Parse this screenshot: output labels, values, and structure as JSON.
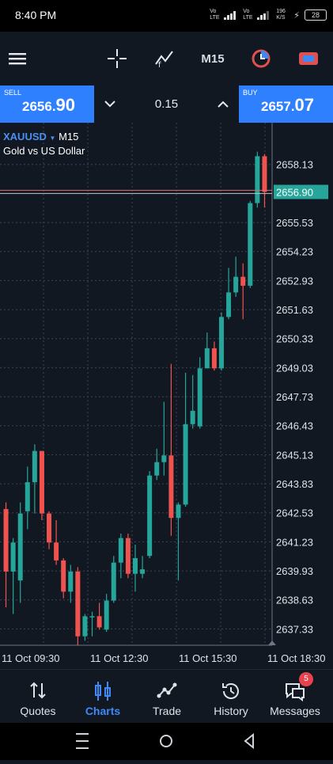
{
  "status": {
    "time": "8:40 PM",
    "net1": "Vo LTE",
    "net2": "4G",
    "net3": "Vo LTE",
    "net4": "4G",
    "speed": "196 K/S",
    "battery": "28"
  },
  "toolbar": {
    "timeframe": "M15",
    "icons": [
      "menu-icon",
      "crosshair-icon",
      "indicators-icon",
      "timeframe",
      "clock-icon",
      "trade-toggle-icon"
    ]
  },
  "trade": {
    "sell_label": "SELL",
    "sell_price_main": "2656.",
    "sell_price_big": "90",
    "buy_label": "BUY",
    "buy_price_main": "2657.",
    "buy_price_big": "07",
    "volume": "0.15"
  },
  "symbol": {
    "name": "XAUUSD",
    "tf": "M15",
    "desc": "Gold vs US Dollar"
  },
  "chart_data": {
    "type": "candlestick",
    "y_ticks": [
      "2658.13",
      "2655.53",
      "2654.23",
      "2652.93",
      "2651.63",
      "2650.33",
      "2649.03",
      "2647.73",
      "2646.43",
      "2645.13",
      "2643.83",
      "2642.53",
      "2641.23",
      "2639.93",
      "2638.63",
      "2637.33"
    ],
    "x_ticks": [
      "11 Oct 09:30",
      "11 Oct 12:30",
      "11 Oct 15:30",
      "11 Oct 18:30"
    ],
    "ylim": [
      2636.6,
      2660.0
    ],
    "price_line": 2656.9,
    "price_label": "2656.90",
    "candles": [
      {
        "o": 2642.7,
        "h": 2643.0,
        "l": 2638.3,
        "c": 2639.9
      },
      {
        "o": 2639.9,
        "h": 2641.4,
        "l": 2638.0,
        "c": 2641.2
      },
      {
        "o": 2639.5,
        "h": 2643.0,
        "l": 2638.5,
        "c": 2642.5
      },
      {
        "o": 2642.6,
        "h": 2644.6,
        "l": 2641.8,
        "c": 2643.9
      },
      {
        "o": 2643.9,
        "h": 2645.6,
        "l": 2642.5,
        "c": 2645.3
      },
      {
        "o": 2645.3,
        "h": 2645.3,
        "l": 2642.2,
        "c": 2642.5
      },
      {
        "o": 2642.5,
        "h": 2642.6,
        "l": 2640.9,
        "c": 2641.2
      },
      {
        "o": 2641.2,
        "h": 2642.2,
        "l": 2640.2,
        "c": 2640.4
      },
      {
        "o": 2640.4,
        "h": 2640.5,
        "l": 2638.7,
        "c": 2639.0
      },
      {
        "o": 2639.0,
        "h": 2640.2,
        "l": 2638.5,
        "c": 2639.9
      },
      {
        "o": 2639.9,
        "h": 2640.1,
        "l": 2636.6,
        "c": 2637.0
      },
      {
        "o": 2637.0,
        "h": 2638.0,
        "l": 2636.8,
        "c": 2637.9
      },
      {
        "o": 2637.9,
        "h": 2638.1,
        "l": 2637.0,
        "c": 2637.9
      },
      {
        "o": 2637.9,
        "h": 2638.5,
        "l": 2637.3,
        "c": 2637.4
      },
      {
        "o": 2637.3,
        "h": 2638.9,
        "l": 2637.2,
        "c": 2638.6
      },
      {
        "o": 2638.6,
        "h": 2640.6,
        "l": 2638.5,
        "c": 2640.3
      },
      {
        "o": 2640.3,
        "h": 2641.6,
        "l": 2639.6,
        "c": 2641.4
      },
      {
        "o": 2641.4,
        "h": 2641.6,
        "l": 2639.6,
        "c": 2639.8
      },
      {
        "o": 2639.8,
        "h": 2641.1,
        "l": 2639.0,
        "c": 2640.5
      },
      {
        "o": 2639.8,
        "h": 2640.6,
        "l": 2639.6,
        "c": 2640.0
      },
      {
        "o": 2640.6,
        "h": 2644.4,
        "l": 2640.5,
        "c": 2644.2
      },
      {
        "o": 2644.2,
        "h": 2645.4,
        "l": 2644.0,
        "c": 2644.8
      },
      {
        "o": 2644.8,
        "h": 2647.5,
        "l": 2644.2,
        "c": 2645.1
      },
      {
        "o": 2645.1,
        "h": 2649.2,
        "l": 2641.5,
        "c": 2642.3
      },
      {
        "o": 2642.3,
        "h": 2643.0,
        "l": 2639.5,
        "c": 2642.9
      },
      {
        "o": 2642.9,
        "h": 2648.8,
        "l": 2642.8,
        "c": 2646.5
      },
      {
        "o": 2646.5,
        "h": 2648.7,
        "l": 2646.3,
        "c": 2647.1
      },
      {
        "o": 2646.4,
        "h": 2649.5,
        "l": 2646.3,
        "c": 2649.0
      },
      {
        "o": 2649.0,
        "h": 2650.6,
        "l": 2649.0,
        "c": 2649.9
      },
      {
        "o": 2649.9,
        "h": 2650.2,
        "l": 2648.9,
        "c": 2649.0
      },
      {
        "o": 2649.0,
        "h": 2651.5,
        "l": 2648.9,
        "c": 2651.3
      },
      {
        "o": 2651.3,
        "h": 2653.5,
        "l": 2651.2,
        "c": 2652.4
      },
      {
        "o": 2652.4,
        "h": 2654.0,
        "l": 2652.2,
        "c": 2653.1
      },
      {
        "o": 2653.1,
        "h": 2653.7,
        "l": 2651.2,
        "c": 2652.7
      },
      {
        "o": 2652.7,
        "h": 2656.5,
        "l": 2652.6,
        "c": 2656.4
      },
      {
        "o": 2656.4,
        "h": 2658.7,
        "l": 2656.2,
        "c": 2658.5
      },
      {
        "o": 2658.5,
        "h": 2658.6,
        "l": 2656.2,
        "c": 2656.9
      }
    ]
  },
  "nav": {
    "quotes": "Quotes",
    "charts": "Charts",
    "trade": "Trade",
    "history": "History",
    "messages": "Messages",
    "messages_badge": "5"
  },
  "colors": {
    "bull": "#26a69a",
    "bear": "#ef5350",
    "accent": "#2e80ff",
    "bg": "#121822"
  }
}
